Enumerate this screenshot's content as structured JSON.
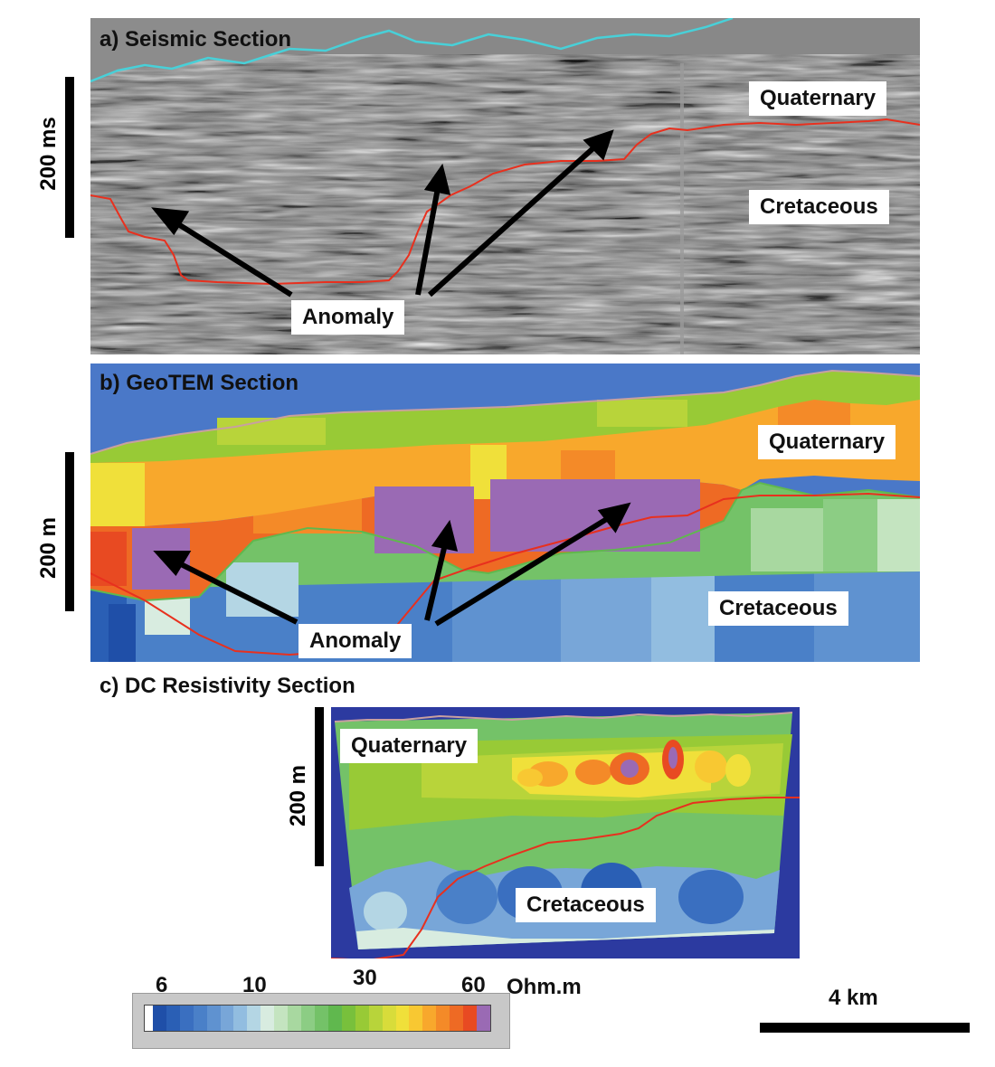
{
  "panels": {
    "seismic": {
      "title": "a) Seismic Section",
      "unit": "200 ms"
    },
    "geotem": {
      "title": "b) GeoTEM Section",
      "unit": "200 m"
    },
    "dc": {
      "title": "c) DC Resistivity Section",
      "unit": "200 m"
    }
  },
  "labels": {
    "quaternary": "Quaternary",
    "cretaceous": "Cretaceous",
    "anomaly": "Anomaly"
  },
  "colorbar": {
    "ticks": [
      "6",
      "10",
      "30",
      "60"
    ],
    "unit": "Ohm.m",
    "colors": [
      "#ffffff",
      "#1f4fa8",
      "#2a5fb5",
      "#3a6fc0",
      "#4a80c8",
      "#5f92d0",
      "#78a6d8",
      "#92bde0",
      "#b4d6e4",
      "#d8ece0",
      "#c4e4c0",
      "#a8d8a0",
      "#8ccd84",
      "#74c268",
      "#60b84e",
      "#78c03c",
      "#98ca36",
      "#b8d43a",
      "#d8dc3a",
      "#f0e03a",
      "#f8c832",
      "#f8a82c",
      "#f48a28",
      "#ee6a24",
      "#e84a22",
      "#9a6ab4"
    ]
  },
  "scale": {
    "label": "4 km"
  },
  "colors": {
    "seismic_bg": "#888888",
    "geotem_bg": "#4a78c8",
    "dc_bg": "#2c3aa0",
    "boundary": "#e8301e",
    "seafloor": "#48d0d8",
    "anomaly": "#9a6ab4"
  }
}
